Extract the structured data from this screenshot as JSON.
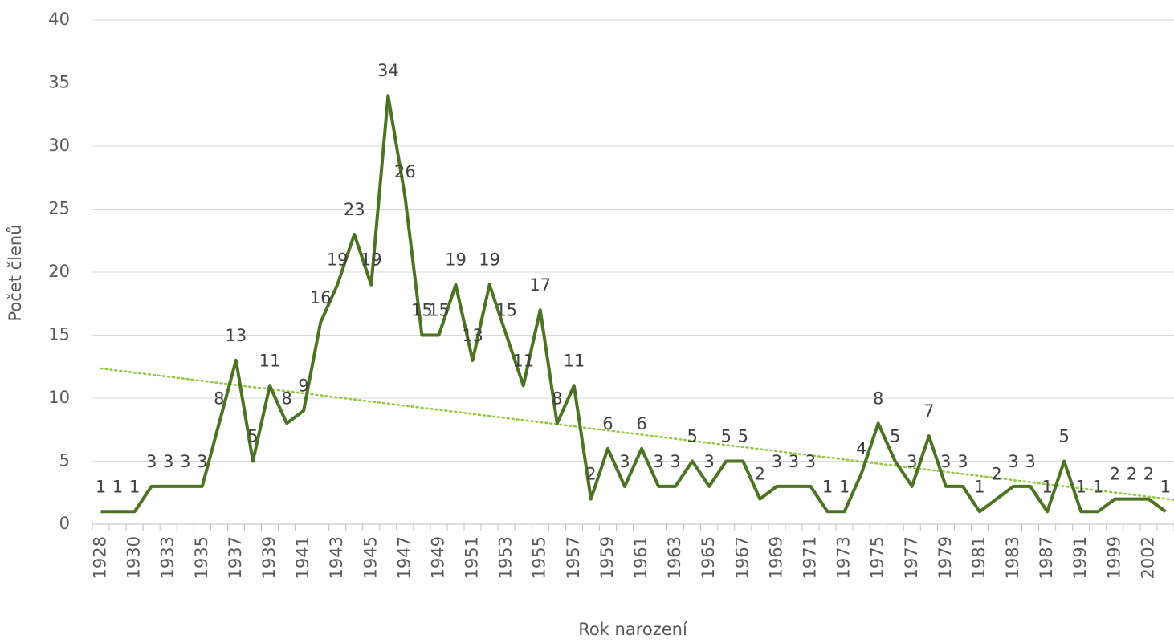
{
  "chart_data": {
    "type": "line",
    "x_label": "Rok narození",
    "y_label": "Počet členů",
    "categories": [
      "1928",
      null,
      "1930",
      null,
      "1933",
      null,
      "1935",
      null,
      "1937",
      null,
      "1939",
      null,
      "1941",
      null,
      "1943",
      null,
      "1945",
      null,
      "1947",
      null,
      "1949",
      null,
      "1951",
      null,
      "1953",
      null,
      "1955",
      null,
      "1957",
      null,
      "1959",
      null,
      "1961",
      null,
      "1963",
      null,
      "1965",
      null,
      "1967",
      null,
      "1969",
      null,
      "1971",
      null,
      "1973",
      null,
      "1975",
      null,
      "1977",
      null,
      "1979",
      null,
      "1981",
      null,
      "1983",
      null,
      "1987",
      null,
      "1991",
      null,
      "1999",
      null,
      "2002",
      null
    ],
    "series": [
      {
        "color": "#4b7322",
        "values": [
          1,
          1,
          1,
          3,
          3,
          3,
          3,
          8,
          13,
          5,
          11,
          8,
          9,
          16,
          19,
          23,
          19,
          34,
          26,
          15,
          15,
          19,
          13,
          19,
          15,
          11,
          17,
          8,
          11,
          2,
          6,
          3,
          6,
          3,
          3,
          5,
          3,
          5,
          5,
          2,
          3,
          3,
          3,
          1,
          1,
          4,
          8,
          5,
          3,
          7,
          3,
          3,
          1,
          2,
          3,
          3,
          1,
          5,
          1,
          1,
          2,
          2,
          2,
          1
        ]
      }
    ],
    "trendline": {
      "type": "linear",
      "color": "#92c83e"
    },
    "ylim": [
      0,
      40
    ],
    "yticks": [
      0,
      5,
      10,
      15,
      20,
      25,
      30,
      35,
      40
    ],
    "grid": true,
    "data_labels": true
  }
}
